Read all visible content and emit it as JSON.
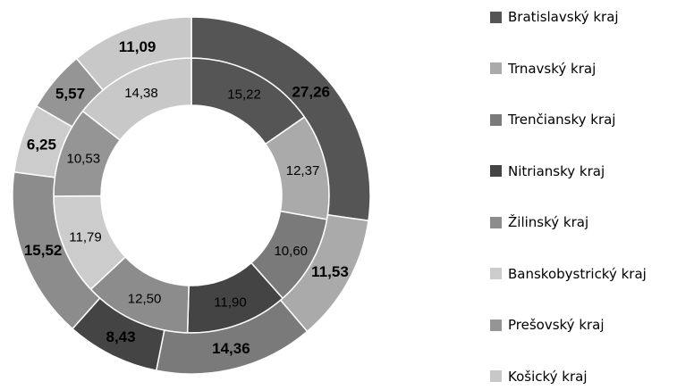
{
  "chart_data": {
    "type": "donut",
    "categories": [
      "Bratislavský kraj",
      "Trnavský kraj",
      "Trenčiansky kraj",
      "Nitriansky kraj",
      "Žilinský kraj",
      "Banskobystrický kraj",
      "Prešovský kraj",
      "Košický kraj"
    ],
    "colors": [
      "#555555",
      "#aaaaaa",
      "#7a7a7a",
      "#444444",
      "#8c8c8c",
      "#cccccc",
      "#959595",
      "#c8c8c8"
    ],
    "series": [
      {
        "ring": "inner",
        "values": [
          15.22,
          12.37,
          10.6,
          11.9,
          12.5,
          11.79,
          10.53,
          14.38
        ],
        "labels": [
          "15,22",
          "12,37",
          "10,60",
          "11,90",
          "12,50",
          "11,79",
          "10,53",
          "14,38"
        ]
      },
      {
        "ring": "outer",
        "values": [
          27.26,
          11.53,
          14.36,
          8.43,
          15.52,
          6.25,
          5.57,
          11.09
        ],
        "labels": [
          "27,26",
          "11,53",
          "14,36",
          "8,43",
          "15,52",
          "6,25",
          "5,57",
          "11,09"
        ]
      }
    ],
    "legend_position": "right"
  }
}
